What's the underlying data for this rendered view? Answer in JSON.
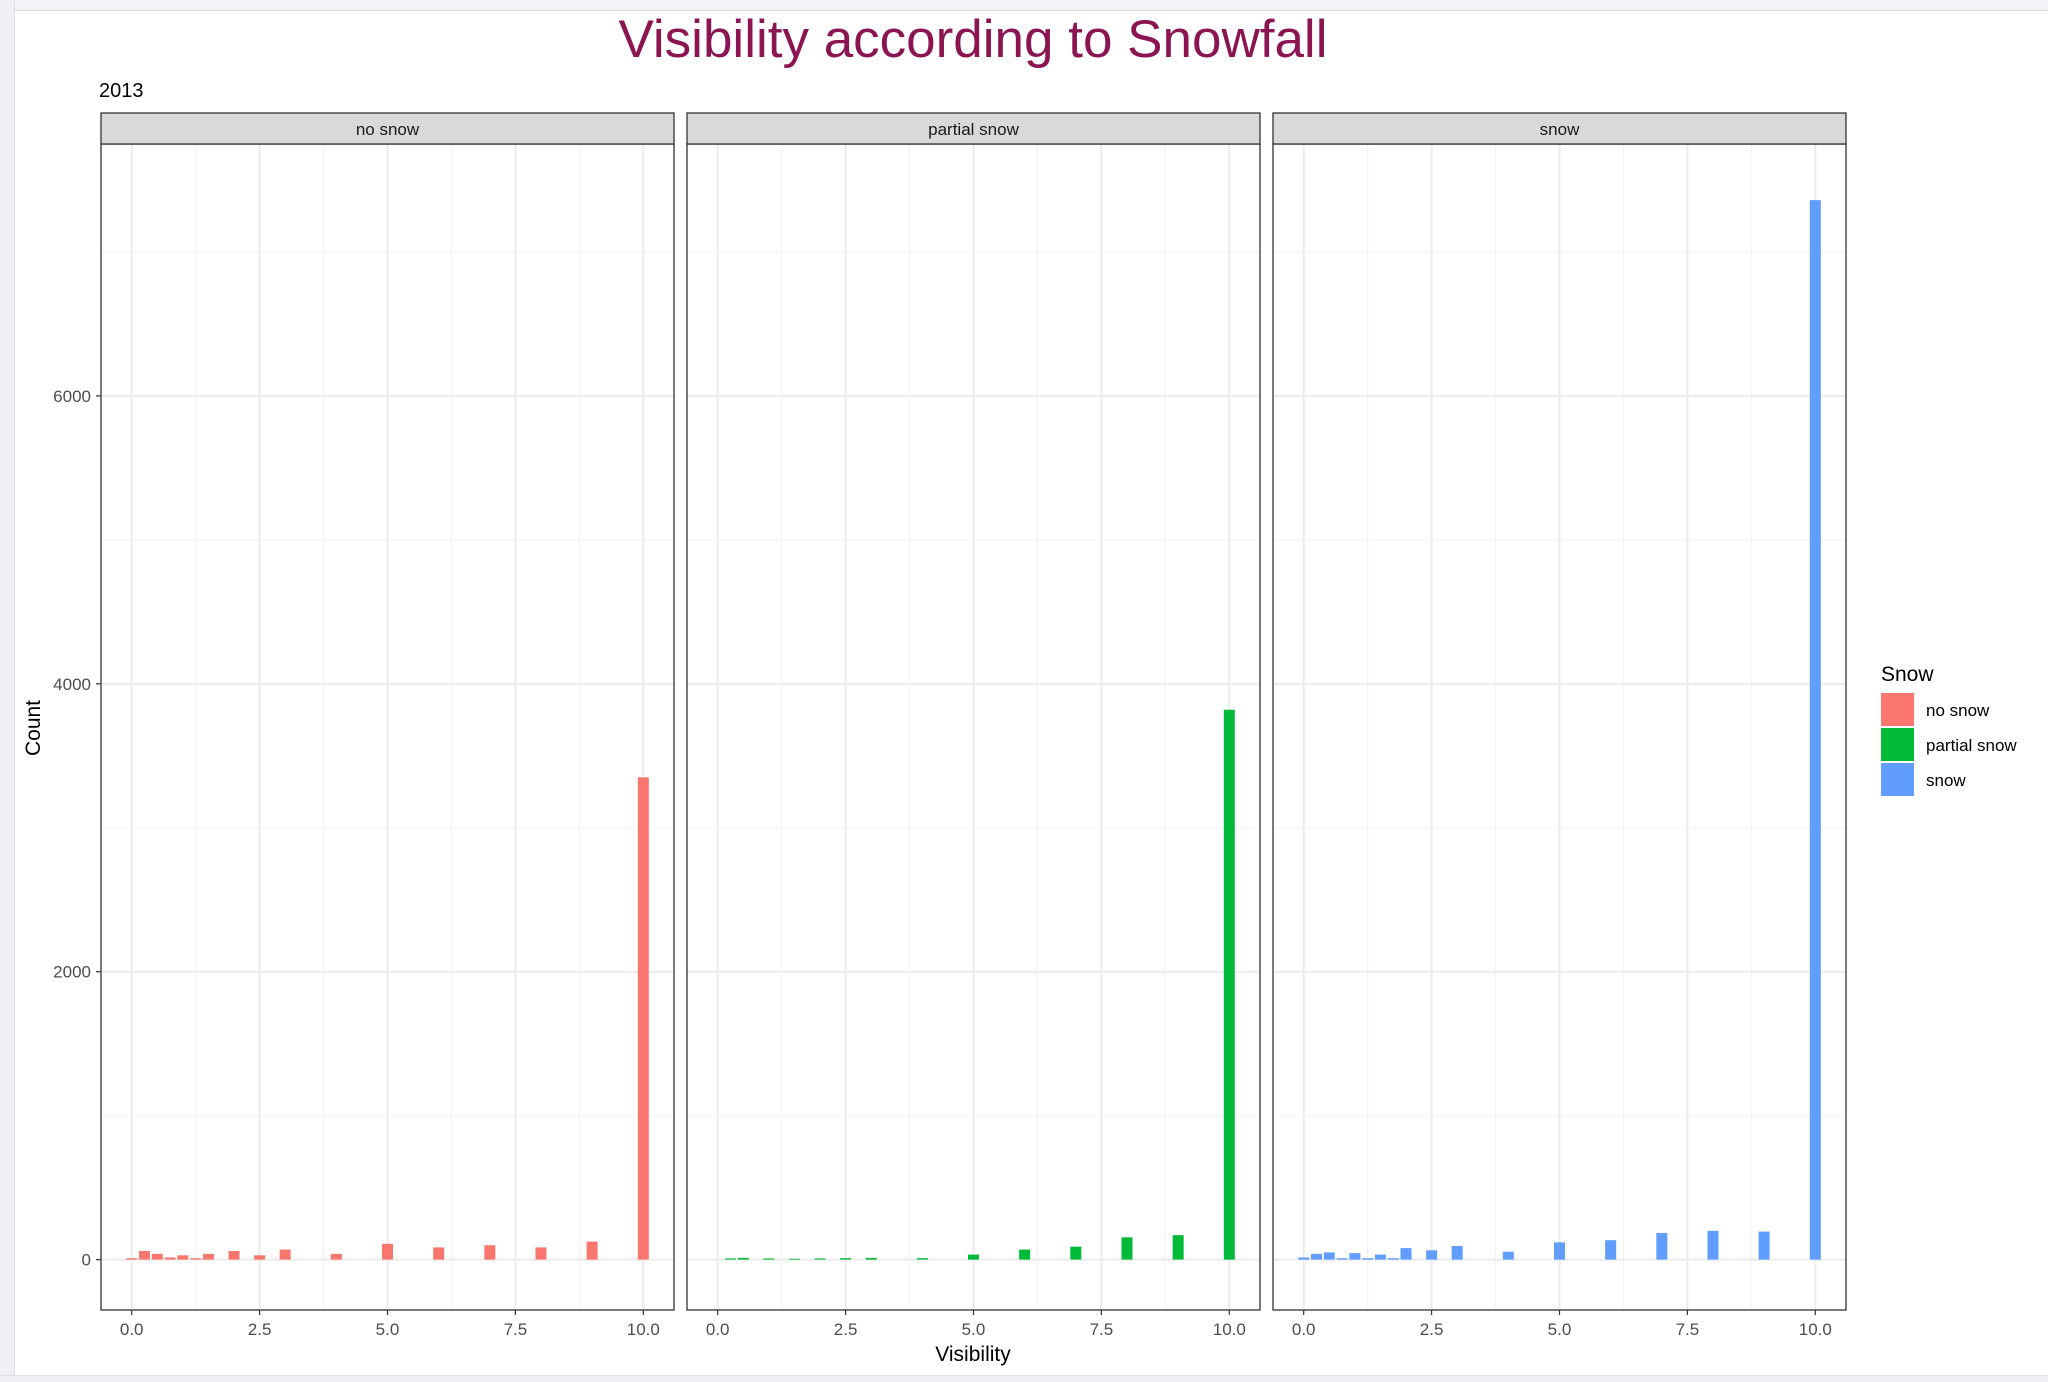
{
  "chart_data": {
    "type": "bar",
    "title": "Visibility according to Snowfall",
    "subtitle": "2013",
    "xlabel": "Visibility",
    "ylabel": "Count",
    "xlim": [
      -0.6,
      10.6
    ],
    "ylim": [
      -350,
      7750
    ],
    "x_ticks": [
      0,
      2.5,
      5,
      7.5,
      10
    ],
    "x_tick_labels": [
      "0.0",
      "2.5",
      "5.0",
      "7.5",
      "10.0"
    ],
    "y_ticks": [
      0,
      2000,
      4000,
      6000
    ],
    "y_tick_labels": [
      "0",
      "2000",
      "4000",
      "6000"
    ],
    "grid": true,
    "legend": {
      "title": "Snow",
      "position": "right"
    },
    "facets": [
      {
        "name": "no snow",
        "color": "#F8766D",
        "x": [
          0,
          0.25,
          0.5,
          0.75,
          1,
          1.25,
          1.5,
          2,
          2.5,
          3,
          4,
          5,
          6,
          7,
          8,
          9,
          10
        ],
        "values": [
          10,
          60,
          40,
          15,
          30,
          10,
          40,
          60,
          30,
          70,
          40,
          110,
          85,
          100,
          85,
          125,
          3350
        ]
      },
      {
        "name": "partial snow",
        "color": "#00BA38",
        "x": [
          0.25,
          0.5,
          1,
          1.5,
          2,
          2.5,
          3,
          4,
          5,
          6,
          7,
          8,
          9,
          10
        ],
        "values": [
          8,
          12,
          8,
          6,
          8,
          10,
          12,
          10,
          35,
          70,
          90,
          155,
          170,
          3820
        ]
      },
      {
        "name": "snow",
        "color": "#619CFF",
        "x": [
          0,
          0.25,
          0.5,
          0.75,
          1,
          1.25,
          1.5,
          1.75,
          2,
          2.5,
          3,
          4,
          5,
          6,
          7,
          8,
          9,
          10
        ],
        "values": [
          15,
          40,
          50,
          10,
          45,
          10,
          35,
          10,
          80,
          65,
          95,
          55,
          120,
          135,
          185,
          200,
          195,
          7360
        ]
      }
    ]
  }
}
